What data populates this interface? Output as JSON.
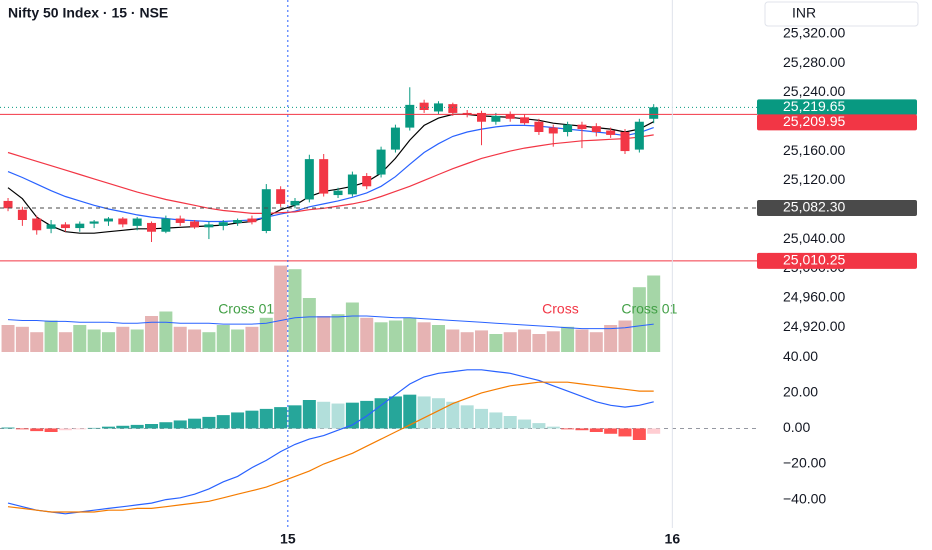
{
  "chart_data": [
    {
      "type": "candlestick",
      "title": "Nifty 50 Index · 15 · NSE",
      "currency": "INR",
      "xlim": [
        -0.56,
        52.2
      ],
      "ylim": [
        24886,
        25366
      ],
      "yticks": [
        {
          "value": 24920,
          "label": "24,920.00"
        },
        {
          "value": 24960,
          "label": "24,960.00"
        },
        {
          "value": 25000,
          "label": "25,000.00"
        },
        {
          "value": 25040,
          "label": "25,040.00"
        },
        {
          "value": 25080,
          "label": "25,080.00"
        },
        {
          "value": 25120,
          "label": "25,120.00"
        },
        {
          "value": 25160,
          "label": "25,160.00"
        },
        {
          "value": 25200,
          "label": "25,200.00"
        },
        {
          "value": 25240,
          "label": "25,240.00"
        },
        {
          "value": 25280,
          "label": "25,280.00"
        },
        {
          "value": 25320,
          "label": "25,320.00"
        }
      ],
      "up_color": "#089981",
      "down_color": "#f23645",
      "open": [
        25092,
        25080,
        25068,
        25054,
        25060,
        25055,
        25061,
        25064,
        25068,
        25058,
        25062,
        25050,
        25068,
        25064,
        25056,
        25058,
        25062,
        25068,
        25051,
        25108,
        25086,
        25094,
        25149,
        25100,
        25101,
        25126,
        25128,
        25162,
        25192,
        25226,
        25214,
        25224,
        25212,
        25212,
        25200,
        25210,
        25206,
        25200,
        25192,
        25186,
        25196,
        25194,
        25188,
        25186,
        25162,
        25204
      ],
      "high": [
        25096,
        25084,
        25072,
        25066,
        25063,
        25064,
        25066,
        25070,
        25070,
        25070,
        25064,
        25072,
        25072,
        25066,
        25064,
        25066,
        25068,
        25072,
        25115,
        25112,
        25096,
        25155,
        25156,
        25110,
        25132,
        25130,
        25166,
        25196,
        25247,
        25230,
        25228,
        25226,
        25216,
        25215,
        25212,
        25214,
        25210,
        25204,
        25196,
        25200,
        25200,
        25198,
        25192,
        25190,
        25204,
        25224
      ],
      "low": [
        25078,
        25058,
        25046,
        25048,
        25050,
        25050,
        25055,
        25058,
        25056,
        25052,
        25036,
        25048,
        25058,
        25054,
        25040,
        25052,
        25058,
        25060,
        25048,
        25084,
        25082,
        25090,
        25098,
        25096,
        25098,
        25108,
        25124,
        25158,
        25188,
        25212,
        25210,
        25208,
        25206,
        25168,
        25196,
        25200,
        25196,
        25182,
        25166,
        25180,
        25164,
        25180,
        25178,
        25156,
        25158,
        25198
      ],
      "close": [
        25082,
        25066,
        25052,
        25060,
        25055,
        25061,
        25064,
        25068,
        25060,
        25068,
        25050,
        25068,
        25062,
        25056,
        25060,
        25063,
        25066,
        25063,
        25108,
        25088,
        25092,
        25149,
        25102,
        25106,
        25128,
        25112,
        25162,
        25192,
        25223,
        25216,
        25225,
        25212,
        25210,
        25200,
        25208,
        25204,
        25198,
        25186,
        25184,
        25196,
        25190,
        25186,
        25182,
        25160,
        25200,
        25219.65
      ],
      "lines": [
        {
          "color": "#000000",
          "values": [
            25110,
            25095,
            25070,
            25058,
            25050,
            25048,
            25048,
            25050,
            25052,
            25054,
            25054,
            25055,
            25056,
            25057,
            25058,
            25059,
            25062,
            25064,
            25070,
            25080,
            25086,
            25098,
            25105,
            25108,
            25112,
            25118,
            25130,
            25150,
            25175,
            25195,
            25205,
            25210,
            25210,
            25208,
            25207,
            25206,
            25204,
            25202,
            25198,
            25196,
            25194,
            25192,
            25190,
            25186,
            25190,
            25200
          ]
        },
        {
          "color": "#2962ff",
          "values": [
            25132,
            25124,
            25115,
            25106,
            25098,
            25092,
            25086,
            25081,
            25077,
            25073,
            25070,
            25068,
            25066,
            25065,
            25064,
            25064,
            25065,
            25066,
            25070,
            25074,
            25078,
            25084,
            25088,
            25092,
            25097,
            25103,
            25112,
            25125,
            25142,
            25158,
            25170,
            25180,
            25186,
            25190,
            25193,
            25195,
            25195,
            25194,
            25192,
            25190,
            25188,
            25186,
            25184,
            25181,
            25185,
            25192
          ]
        },
        {
          "color": "#f23645",
          "values": [
            25158,
            25152,
            25146,
            25140,
            25134,
            25128,
            25122,
            25116,
            25110,
            25104,
            25099,
            25094,
            25090,
            25086,
            25082,
            25079,
            25077,
            25075,
            25075,
            25076,
            25077,
            25080,
            25082,
            25085,
            25088,
            25092,
            25098,
            25105,
            25112,
            25120,
            25128,
            25136,
            25143,
            25150,
            25155,
            25160,
            25164,
            25167,
            25170,
            25172,
            25174,
            25175,
            25176,
            25177,
            25179,
            25182
          ]
        }
      ],
      "volume": {
        "ylim": [
          0,
          100
        ],
        "up_color": "#a5d6a7",
        "down_color": "#e6b3b3",
        "values": [
          30,
          28,
          22,
          35,
          22,
          30,
          25,
          22,
          28,
          25,
          40,
          45,
          28,
          25,
          22,
          30,
          25,
          28,
          38,
          96,
          92,
          60,
          40,
          42,
          55,
          38,
          33,
          35,
          38,
          33,
          30,
          25,
          22,
          24,
          20,
          22,
          25,
          20,
          23,
          28,
          25,
          22,
          30,
          35,
          72,
          85
        ]
      },
      "volume_ma": {
        "color": "#2962ff",
        "values": [
          36,
          35,
          35,
          34,
          34,
          33,
          33,
          33,
          32,
          32,
          33,
          33,
          32,
          32,
          32,
          31,
          31,
          31,
          32,
          35,
          38,
          39,
          39,
          39,
          40,
          40,
          39,
          38,
          38,
          37,
          36,
          35,
          34,
          33,
          32,
          31,
          30,
          29,
          28,
          27,
          26,
          26,
          26,
          27,
          29,
          31
        ]
      },
      "price_lines": [
        {
          "value": 25219.65,
          "label": "25,219.65",
          "color": "#089981",
          "style": "dotted"
        },
        {
          "value": 25209.95,
          "label": "25,209.95",
          "color": "#f23645",
          "style": "solid"
        },
        {
          "value": 25082.3,
          "label": "25,082.30",
          "color": "#4a4a4a",
          "style": "dashed"
        },
        {
          "value": 25010.25,
          "label": "25,010.25",
          "color": "#f23645",
          "style": "solid"
        }
      ],
      "annotations": [
        {
          "text": "Cross 01",
          "x": 16.6,
          "color": "#43a047"
        },
        {
          "text": "Cross",
          "x": 38.5,
          "color": "#f23645"
        },
        {
          "text": "Cross 01",
          "x": 44.7,
          "color": "#43a047"
        }
      ]
    },
    {
      "type": "macd",
      "xlim": [
        -0.56,
        52.2
      ],
      "ylim": [
        -56,
        43
      ],
      "xticks": [
        {
          "value": 19.5,
          "label": "15"
        },
        {
          "value": 46.3,
          "label": "16"
        }
      ],
      "yticks": [
        {
          "value": -40,
          "label": "−40.00"
        },
        {
          "value": -20,
          "label": "−20.00"
        },
        {
          "value": 0,
          "label": "0.00"
        },
        {
          "value": 20,
          "label": "20.00"
        },
        {
          "value": 40,
          "label": "40.00"
        }
      ],
      "zero_line": true,
      "histogram": [
        0.5,
        -0.5,
        -1.5,
        -2,
        -1,
        -0.5,
        0.3,
        1,
        1.5,
        2,
        2.5,
        3.5,
        4.5,
        5.5,
        6.5,
        7.5,
        9,
        10,
        11,
        12,
        13,
        16,
        15,
        14,
        14.5,
        15.5,
        17,
        18,
        19,
        18,
        17,
        15,
        13,
        11,
        9,
        7,
        5,
        3,
        1,
        -0.5,
        -1,
        -2,
        -3,
        -4.5,
        -6.5,
        -3
      ],
      "histogram_colors": [
        "#26a69a",
        "#b2dfdb",
        "#ffcdd2",
        "#ff5252"
      ],
      "series": [
        {
          "color": "#2962ff",
          "values": [
            -42,
            -44,
            -46,
            -47,
            -48,
            -47,
            -46,
            -45,
            -44,
            -43,
            -42,
            -40,
            -39,
            -37,
            -34,
            -30,
            -27,
            -22,
            -18,
            -13,
            -9,
            -6,
            -4,
            -1,
            2,
            7,
            13,
            19,
            25,
            29,
            31,
            32,
            33,
            33,
            32,
            31,
            29,
            27,
            24,
            21,
            18,
            15,
            13,
            12,
            13,
            15
          ]
        },
        {
          "color": "#f57c00",
          "values": [
            -44,
            -45,
            -46,
            -47,
            -47,
            -47,
            -47,
            -46,
            -46,
            -45,
            -45,
            -44,
            -43,
            -42,
            -41,
            -39,
            -37,
            -35,
            -33,
            -30,
            -27,
            -24,
            -20,
            -17,
            -14,
            -10,
            -6,
            -2,
            2,
            6,
            10,
            14,
            17,
            20,
            22,
            24,
            25,
            26,
            26,
            26,
            25,
            24,
            23,
            22,
            21,
            21
          ]
        }
      ]
    }
  ]
}
